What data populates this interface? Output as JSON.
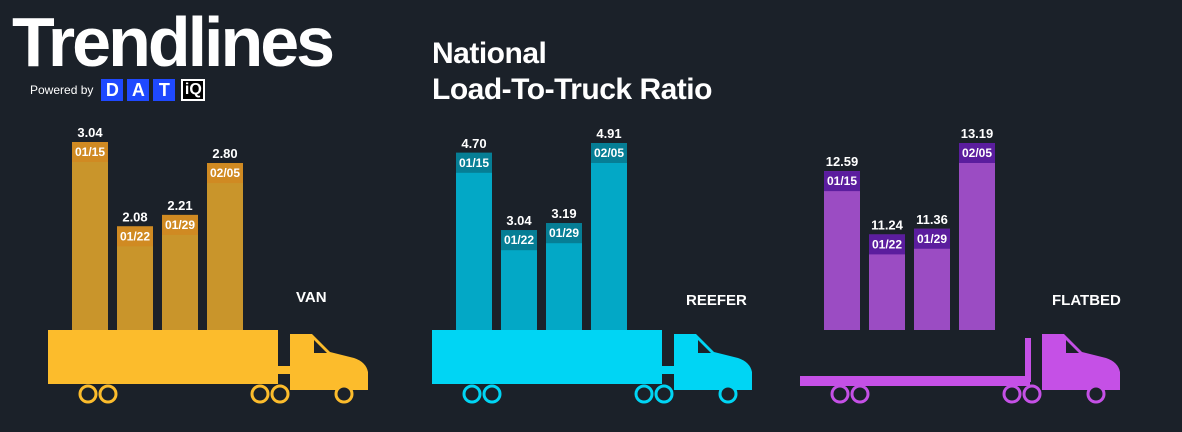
{
  "brand": {
    "title": "Trendlines",
    "powered_by": "Powered by",
    "logo_letters": [
      "D",
      "A",
      "T"
    ],
    "logo_suffix": "iQ"
  },
  "chart_title": {
    "line1": "National",
    "line2": "Load-To-Truck Ratio"
  },
  "chart_data": [
    {
      "type": "bar",
      "name": "VAN",
      "categories": [
        "01/15",
        "01/22",
        "01/29",
        "02/05"
      ],
      "values": [
        3.04,
        2.08,
        2.21,
        2.8
      ],
      "value_labels": [
        "3.04",
        "2.08",
        "2.21",
        "2.80"
      ],
      "colors": {
        "truck": "#fcbc2c",
        "bar": "#c9952b",
        "label_bg": "#d08a22"
      }
    },
    {
      "type": "bar",
      "name": "REEFER",
      "categories": [
        "01/15",
        "01/22",
        "01/29",
        "02/05"
      ],
      "values": [
        4.7,
        3.04,
        3.19,
        4.91
      ],
      "value_labels": [
        "4.70",
        "3.04",
        "3.19",
        "4.91"
      ],
      "colors": {
        "truck": "#00d5f4",
        "bar": "#03a8c6",
        "label_bg": "#067e95"
      }
    },
    {
      "type": "bar",
      "name": "FLATBED",
      "categories": [
        "01/15",
        "01/22",
        "01/29",
        "02/05"
      ],
      "values": [
        12.59,
        11.24,
        11.36,
        13.19
      ],
      "value_labels": [
        "12.59",
        "11.24",
        "11.36",
        "13.19"
      ],
      "colors": {
        "truck": "#c550e6",
        "bar": "#9b4cc3",
        "label_bg": "#5b1d9e"
      }
    }
  ]
}
